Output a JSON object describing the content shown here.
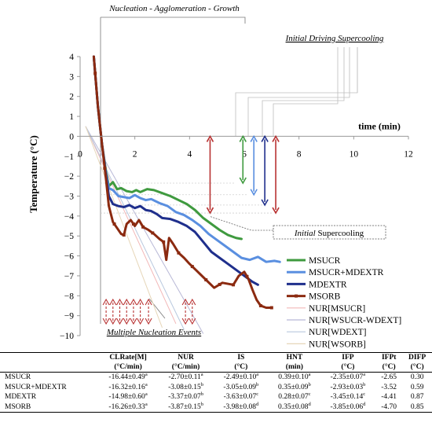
{
  "chart_data": {
    "type": "line",
    "xlabel": "time (min)",
    "ylabel": "Temperature (°C)",
    "xlim": [
      0,
      12
    ],
    "ylim": [
      -10,
      4
    ],
    "x_ticks": [
      0,
      2,
      4,
      6,
      8,
      10,
      12
    ],
    "y_ticks": [
      4,
      3,
      2,
      1,
      0,
      -1,
      -2,
      -3,
      -4,
      -5,
      -6,
      -7,
      -8,
      -9,
      -10
    ],
    "grid": false,
    "legend_position": "right",
    "series": [
      {
        "name": "MSUCR",
        "color": "#3f9a3f",
        "x": [
          0.5,
          0.65,
          0.8,
          0.95,
          1.05,
          1.2,
          1.35,
          1.5,
          1.7,
          1.9,
          2.05,
          2.2,
          2.45,
          2.7,
          3.0,
          3.3,
          3.6,
          3.9,
          4.2,
          4.5,
          4.8,
          5.1,
          5.4,
          5.7,
          5.9
        ],
        "y": [
          4.0,
          1.5,
          -0.4,
          -1.8,
          -2.5,
          -2.3,
          -2.65,
          -2.6,
          -2.75,
          -2.8,
          -2.7,
          -2.8,
          -2.65,
          -2.7,
          -2.85,
          -3.0,
          -3.2,
          -3.4,
          -3.7,
          -4.1,
          -4.4,
          -4.7,
          -4.95,
          -5.1,
          -5.15
        ]
      },
      {
        "name": "MSUCR+MDEXTR",
        "color": "#5a8fe0",
        "x": [
          0.5,
          0.65,
          0.8,
          0.95,
          1.05,
          1.2,
          1.4,
          1.6,
          1.8,
          2.0,
          2.2,
          2.4,
          2.6,
          2.9,
          3.2,
          3.5,
          3.8,
          4.1,
          4.4,
          4.7,
          5.0,
          5.3,
          5.6,
          5.9,
          6.2,
          6.5,
          6.8,
          7.1,
          7.3
        ],
        "y": [
          4.0,
          1.5,
          -0.4,
          -1.9,
          -2.6,
          -2.7,
          -3.0,
          -3.05,
          -3.1,
          -2.95,
          -3.1,
          -3.2,
          -3.15,
          -3.35,
          -3.5,
          -3.8,
          -3.95,
          -4.2,
          -4.5,
          -4.9,
          -5.2,
          -5.5,
          -5.8,
          -6.1,
          -6.2,
          -6.05,
          -6.3,
          -6.25,
          -6.3
        ]
      },
      {
        "name": "MDEXTR",
        "color": "#1f2f8c",
        "x": [
          0.5,
          0.65,
          0.8,
          0.95,
          1.05,
          1.2,
          1.4,
          1.6,
          1.8,
          2.0,
          2.2,
          2.4,
          2.6,
          2.8,
          3.0,
          3.3,
          3.6,
          3.9,
          4.2,
          4.5,
          4.8,
          5.1,
          5.4,
          5.7,
          6.0,
          6.3,
          6.5
        ],
        "y": [
          4.0,
          1.5,
          -0.4,
          -2.0,
          -3.0,
          -3.4,
          -3.5,
          -3.55,
          -3.45,
          -3.6,
          -3.5,
          -3.7,
          -3.75,
          -3.9,
          -4.1,
          -4.15,
          -4.3,
          -4.5,
          -4.8,
          -5.3,
          -5.8,
          -6.1,
          -6.4,
          -6.7,
          -7.0,
          -7.3,
          -7.45
        ]
      },
      {
        "name": "MSORB",
        "color": "#8b2a10",
        "x": [
          0.5,
          0.65,
          0.8,
          0.95,
          1.05,
          1.2,
          1.35,
          1.5,
          1.6,
          1.7,
          1.85,
          2.0,
          2.15,
          2.3,
          2.5,
          2.7,
          2.9,
          3.05,
          3.15,
          3.25,
          3.4,
          3.6,
          3.8,
          4.0,
          4.3,
          4.6,
          4.9,
          5.2,
          5.4,
          5.6,
          5.8,
          6.0,
          6.15,
          6.3,
          6.45,
          6.6,
          6.8,
          7.0
        ],
        "y": [
          4.0,
          1.5,
          -0.4,
          -2.2,
          -3.5,
          -4.3,
          -4.6,
          -4.9,
          -4.95,
          -4.4,
          -4.2,
          -4.5,
          -4.2,
          -4.55,
          -4.7,
          -4.9,
          -5.15,
          -5.3,
          -6.2,
          -5.1,
          -5.4,
          -5.85,
          -6.1,
          -6.4,
          -6.8,
          -7.2,
          -7.6,
          -7.35,
          -7.4,
          -7.45,
          -7.0,
          -6.8,
          -7.15,
          -7.7,
          -8.2,
          -8.5,
          -8.6,
          -8.6
        ]
      },
      {
        "name": "NUR[MSUCR]",
        "color": "#f2b8b8",
        "x": [
          0.2,
          3.5
        ],
        "y": [
          0.5,
          -9.4
        ]
      },
      {
        "name": "NUR[WSUCR-WDEXT]",
        "color": "#b8b8d6",
        "x": [
          0.2,
          4.5
        ],
        "y": [
          0.5,
          -9.9
        ]
      },
      {
        "name": "NUR[WDEXT]",
        "color": "#b8c8de",
        "x": [
          0.2,
          3.8
        ],
        "y": [
          0.5,
          -9.7
        ]
      },
      {
        "name": "NUR[WSORB]",
        "color": "#e6d6b8",
        "x": [
          0.2,
          3.0
        ],
        "y": [
          0.5,
          -9.6
        ]
      }
    ],
    "markers": {
      "series": "MSORB",
      "x": [
        0.2,
        0.55,
        0.9,
        1.25,
        1.6,
        1.95,
        2.3,
        2.65,
        3.05,
        3.6,
        4.1,
        4.6,
        5.1,
        5.6,
        6.1,
        6.6,
        7.0
      ]
    },
    "annotations": {
      "nucleation": "Nucleation - Agglomeration - Growth",
      "initial_driving": "Initial Driving Supercooling",
      "initial_supercooling_prefix": "Initial",
      "initial_supercooling_suffix": " Supercooling",
      "multiple_events": "Multiple Nucleation Events"
    },
    "supercooling_arrows": [
      {
        "x": 4.75,
        "top": 0,
        "bottom": -3.85,
        "color": "#b83232"
      },
      {
        "x": 5.95,
        "top": 0,
        "bottom": -2.35,
        "color": "#3f9a3f"
      },
      {
        "x": 6.35,
        "top": 0,
        "bottom": -2.93,
        "color": "#5a8fe0"
      },
      {
        "x": 6.75,
        "top": 0,
        "bottom": -3.45,
        "color": "#1f2f8c"
      },
      {
        "x": 7.15,
        "top": 0,
        "bottom": -3.85,
        "color": "#b83232"
      }
    ],
    "nucleation_event_arrows": [
      {
        "x": 0.95,
        "color": "#b83232"
      },
      {
        "x": 1.2,
        "color": "#b83232"
      },
      {
        "x": 1.45,
        "color": "#b83232"
      },
      {
        "x": 1.7,
        "color": "#b83232"
      },
      {
        "x": 1.95,
        "color": "#b83232"
      },
      {
        "x": 2.2,
        "color": "#b83232"
      },
      {
        "x": 2.5,
        "color": "#b83232"
      },
      {
        "x": 3.85,
        "color": "#b83232"
      },
      {
        "x": 4.1,
        "color": "#b83232"
      }
    ]
  },
  "table": {
    "headers": [
      {
        "line1": "",
        "line2": ""
      },
      {
        "line1": "CLRate[M]",
        "line2": "(°C/min)"
      },
      {
        "line1": "NUR",
        "line2": "(°C/min)"
      },
      {
        "line1": "IS",
        "line2": "(°C)"
      },
      {
        "line1": "HNT",
        "line2": "(min)"
      },
      {
        "line1": "IFP",
        "line2": "(°C)"
      },
      {
        "line1": "IFPt",
        "line2": "(°C)"
      },
      {
        "line1": "DIFP",
        "line2": "(°C)"
      }
    ],
    "rows": [
      {
        "name": "MSUCR",
        "c1": {
          "v": "-16.44±0.49",
          "s": "a"
        },
        "c2": {
          "v": "-2.70±0.11",
          "s": "a"
        },
        "c3": {
          "v": "-2.49±0.10",
          "s": "a"
        },
        "c4": {
          "v": "0.39±0.10",
          "s": "a"
        },
        "c5": {
          "v": "-2.35±0.07",
          "s": "a"
        },
        "c6": "-2.65",
        "c7": "0.30"
      },
      {
        "name": "MSUCR+MDEXTR",
        "c1": {
          "v": "-16.32±0.16",
          "s": "a"
        },
        "c2": {
          "v": "-3.08±0.15",
          "s": "b"
        },
        "c3": {
          "v": "-3.05±0.09",
          "s": "b"
        },
        "c4": {
          "v": "0.35±0.09",
          "s": "b"
        },
        "c5": {
          "v": "-2.93±0.03",
          "s": "b"
        },
        "c6": "-3.52",
        "c7": "0.59"
      },
      {
        "name": "MDEXTR",
        "c1": {
          "v": "-14.98±0.60",
          "s": "a"
        },
        "c2": {
          "v": "-3.37±0.07",
          "s": "b"
        },
        "c3": {
          "v": "-3.63±0.07",
          "s": "c"
        },
        "c4": {
          "v": "0.28±0.07",
          "s": "c"
        },
        "c5": {
          "v": "-3.45±0.14",
          "s": "c"
        },
        "c6": "-4.41",
        "c7": "0.87"
      },
      {
        "name": "MSORB",
        "c1": {
          "v": "-16.26±0.33",
          "s": "a"
        },
        "c2": {
          "v": "-3.87±0.15",
          "s": "b"
        },
        "c3": {
          "v": "-3.98±0.08",
          "s": "d"
        },
        "c4": {
          "v": "0.35±0.08",
          "s": "d"
        },
        "c5": {
          "v": "-3.85±0.06",
          "s": "d"
        },
        "c6": "-4.70",
        "c7": "0.85"
      }
    ]
  }
}
